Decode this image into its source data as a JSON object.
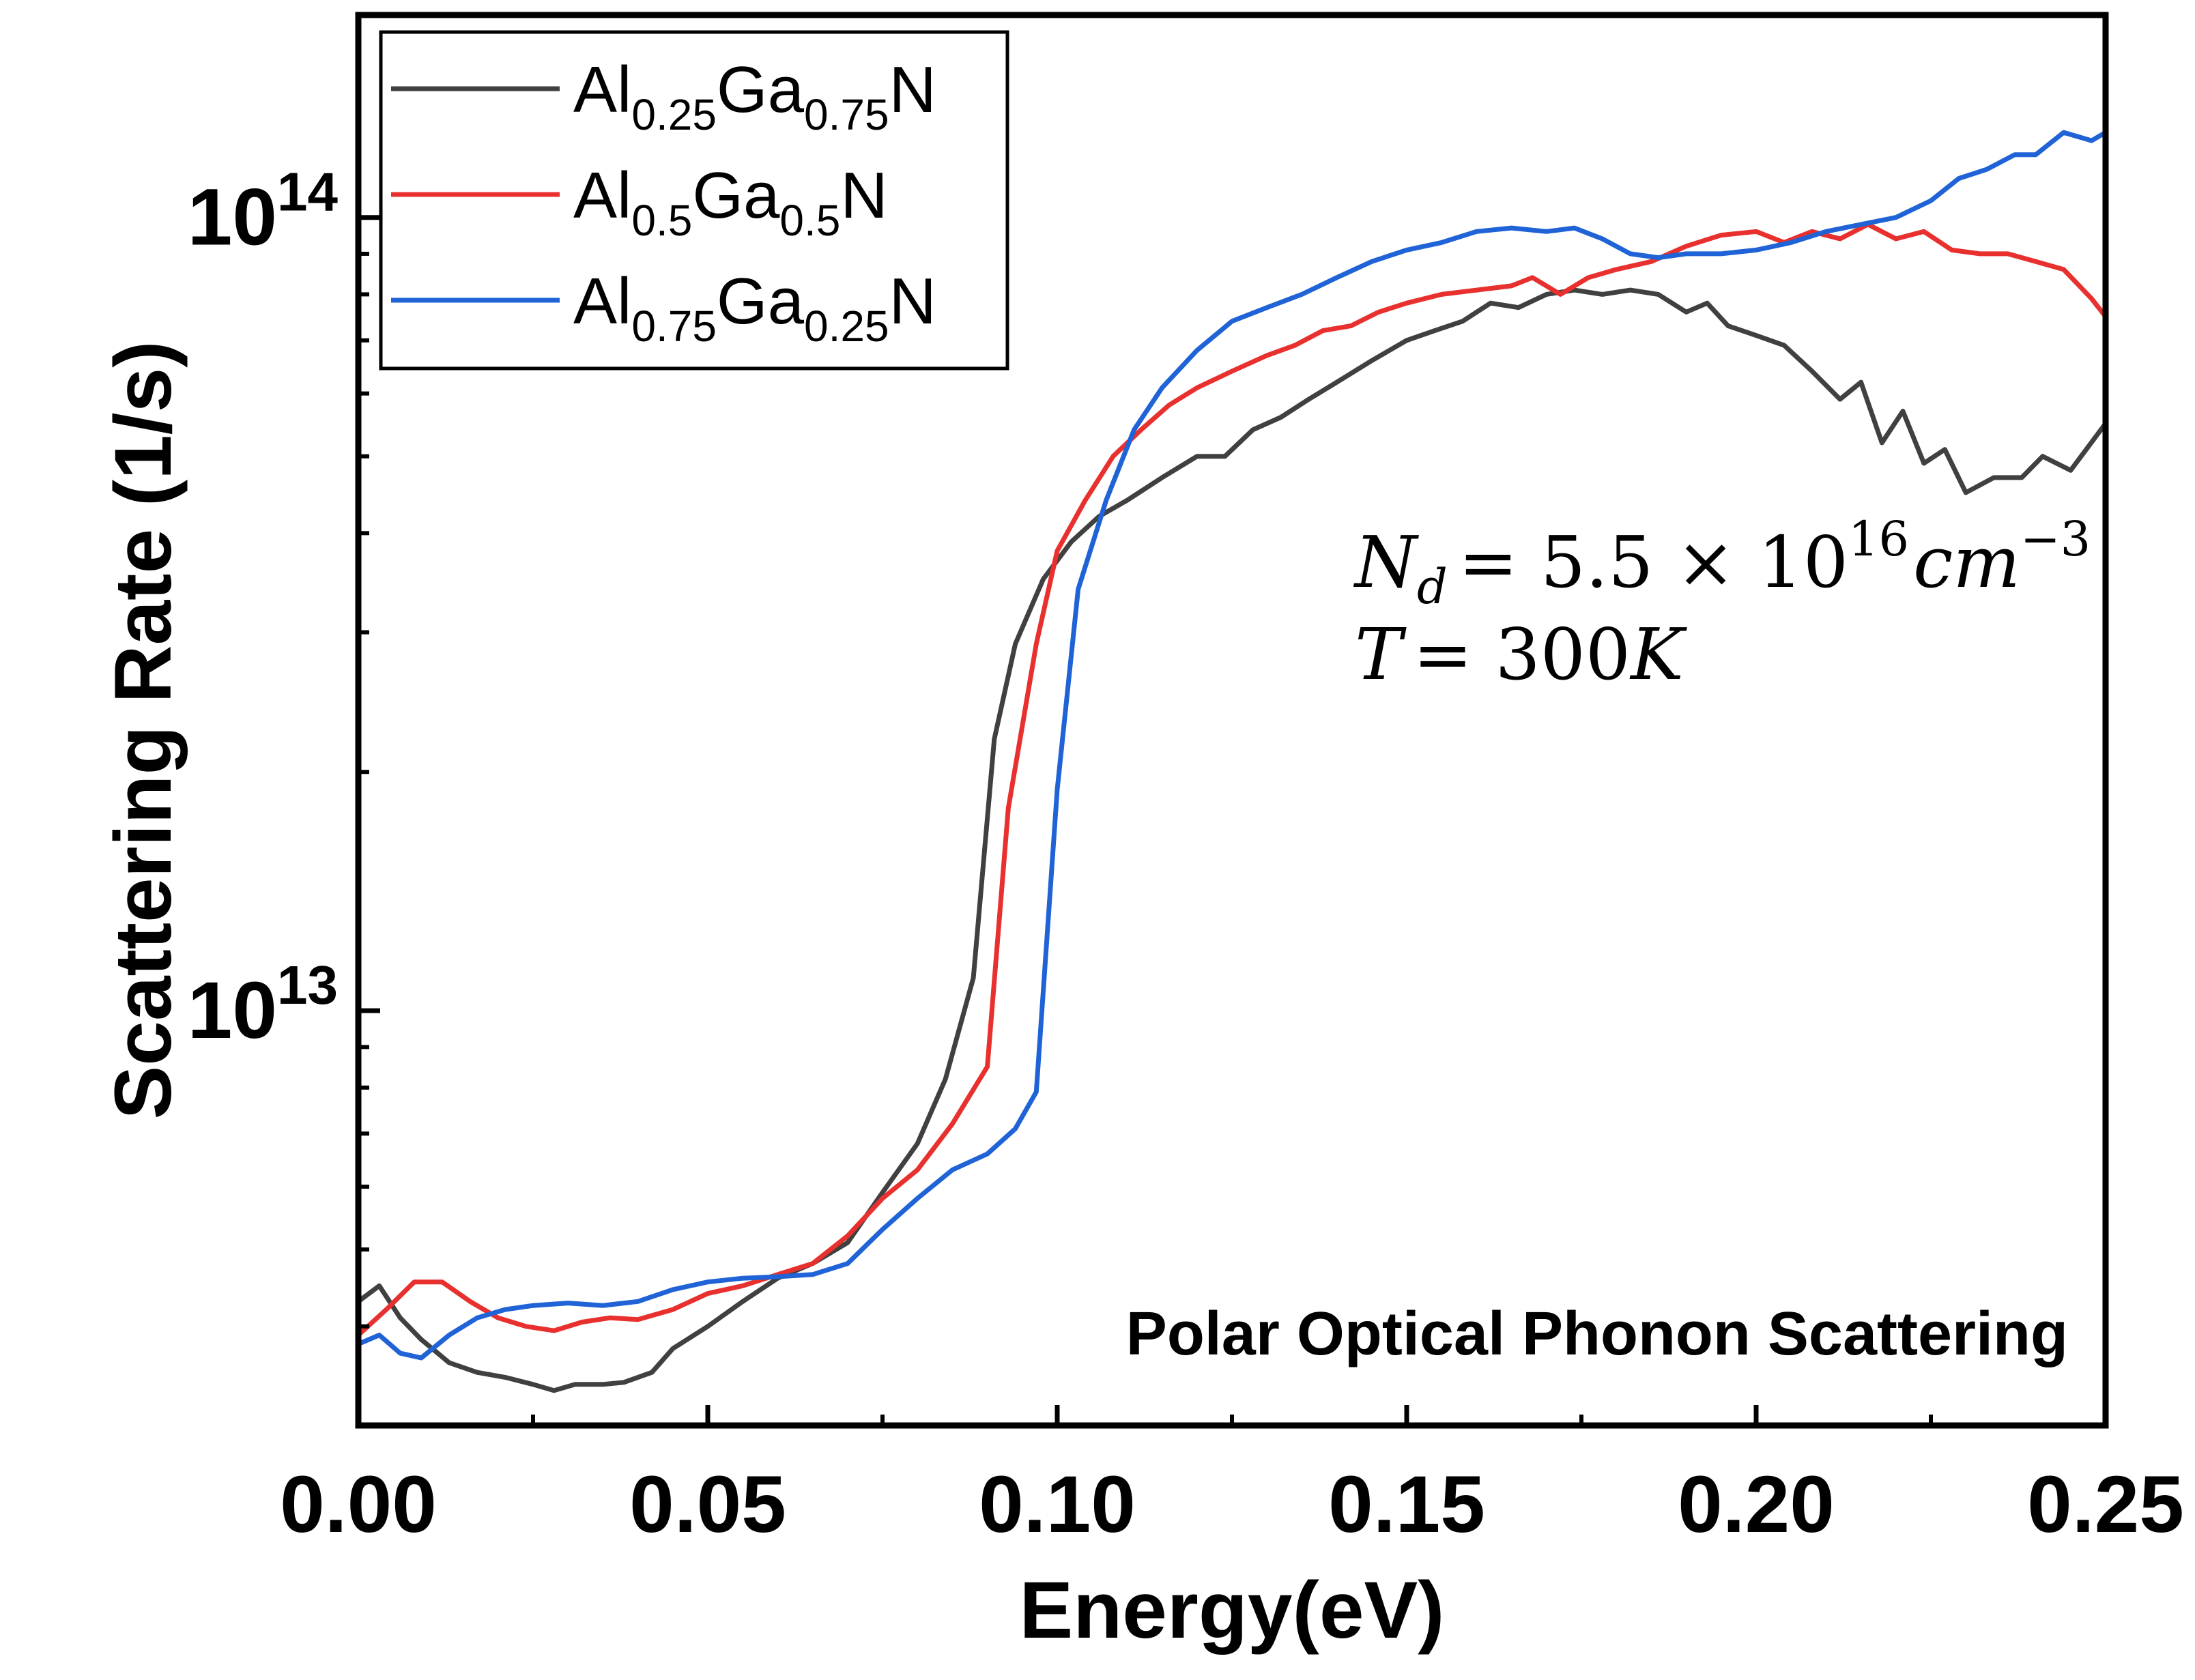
{
  "chart_data": {
    "type": "line",
    "title": "",
    "xlabel": "Energy(eV)",
    "ylabel": "Scattering Rate (1/s)",
    "xlim": [
      0,
      0.25
    ],
    "ylim": [
      3000000000000,
      180000000000000
    ],
    "yscale": "log",
    "x_ticks": [
      0.0,
      0.05,
      0.1,
      0.15,
      0.2,
      0.25
    ],
    "x_tick_labels": [
      "0.00",
      "0.05",
      "0.10",
      "0.15",
      "0.20",
      "0.25"
    ],
    "y_ticks": [
      {
        "value": 10000000000000,
        "base": "10",
        "exp": "13"
      },
      {
        "value": 100000000000000,
        "base": "10",
        "exp": "14"
      }
    ],
    "corner_label": "Polar Optical Phonon Scattering",
    "annotation": {
      "line1": {
        "var": "N",
        "sub": "d",
        "eq": "= 5.5 × 10",
        "exp": "16",
        "unit": "cm",
        "unit_exp": "−3"
      },
      "line2": {
        "var": "T",
        "eq": "= 300",
        "unit": "K"
      }
    },
    "series": [
      {
        "name": "Al0.25Ga0.75N",
        "legend": {
          "p1": "Al",
          "s1": "0.25",
          "p2": "Ga",
          "s2": "0.75",
          "p3": "N"
        },
        "color": "#404040",
        "points": [
          [
            0,
            4300000000000.0
          ],
          [
            0.003,
            4500000000000.0
          ],
          [
            0.006,
            4100000000000.0
          ],
          [
            0.009,
            3850000000000.0
          ],
          [
            0.013,
            3600000000000.0
          ],
          [
            0.017,
            3500000000000.0
          ],
          [
            0.021,
            3450000000000.0
          ],
          [
            0.025,
            3380000000000.0
          ],
          [
            0.028,
            3320000000000.0
          ],
          [
            0.031,
            3380000000000.0
          ],
          [
            0.035,
            3380000000000.0
          ],
          [
            0.038,
            3400000000000.0
          ],
          [
            0.042,
            3500000000000.0
          ],
          [
            0.045,
            3750000000000.0
          ],
          [
            0.05,
            4000000000000.0
          ],
          [
            0.055,
            4300000000000.0
          ],
          [
            0.06,
            4600000000000.0
          ],
          [
            0.065,
            4800000000000.0
          ],
          [
            0.07,
            5100000000000.0
          ],
          [
            0.075,
            5900000000000.0
          ],
          [
            0.08,
            6800000000000.0
          ],
          [
            0.084,
            8200000000000.0
          ],
          [
            0.088,
            11000000000000.0
          ],
          [
            0.091,
            22000000000000.0
          ],
          [
            0.094,
            29000000000000.0
          ],
          [
            0.098,
            35000000000000.0
          ],
          [
            0.102,
            39000000000000.0
          ],
          [
            0.106,
            42000000000000.0
          ],
          [
            0.11,
            44000000000000.0
          ],
          [
            0.115,
            47000000000000.0
          ],
          [
            0.12,
            50000000000000.0
          ],
          [
            0.124,
            50000000000000.0
          ],
          [
            0.128,
            54000000000000.0
          ],
          [
            0.132,
            56000000000000.0
          ],
          [
            0.136,
            59000000000000.0
          ],
          [
            0.14,
            62000000000000.0
          ],
          [
            0.145,
            66000000000000.0
          ],
          [
            0.15,
            70000000000000.0
          ],
          [
            0.154,
            72000000000000.0
          ],
          [
            0.158,
            74000000000000.0
          ],
          [
            0.162,
            78000000000000.0
          ],
          [
            0.166,
            77000000000000.0
          ],
          [
            0.17,
            80000000000000.0
          ],
          [
            0.174,
            81000000000000.0
          ],
          [
            0.178,
            80000000000000.0
          ],
          [
            0.182,
            81000000000000.0
          ],
          [
            0.186,
            80000000000000.0
          ],
          [
            0.19,
            76000000000000.0
          ],
          [
            0.193,
            78000000000000.0
          ],
          [
            0.196,
            73000000000000.0
          ],
          [
            0.2,
            71000000000000.0
          ],
          [
            0.204,
            69000000000000.0
          ],
          [
            0.208,
            64000000000000.0
          ],
          [
            0.212,
            59000000000000.0
          ],
          [
            0.215,
            62000000000000.0
          ],
          [
            0.218,
            52000000000000.0
          ],
          [
            0.221,
            57000000000000.0
          ],
          [
            0.224,
            49000000000000.0
          ],
          [
            0.227,
            51000000000000.0
          ],
          [
            0.23,
            45000000000000.0
          ],
          [
            0.234,
            47000000000000.0
          ],
          [
            0.238,
            47000000000000.0
          ],
          [
            0.241,
            50000000000000.0
          ],
          [
            0.245,
            48000000000000.0
          ],
          [
            0.25,
            55000000000000.0
          ]
        ]
      },
      {
        "name": "Al0.5Ga0.5N",
        "legend": {
          "p1": "Al",
          "s1": "0.5",
          "p2": "Ga",
          "s2": "0.5",
          "p3": "N"
        },
        "color": "#e8312f",
        "points": [
          [
            0,
            3900000000000.0
          ],
          [
            0.004,
            4200000000000.0
          ],
          [
            0.008,
            4550000000000.0
          ],
          [
            0.012,
            4550000000000.0
          ],
          [
            0.016,
            4300000000000.0
          ],
          [
            0.02,
            4100000000000.0
          ],
          [
            0.024,
            4000000000000.0
          ],
          [
            0.028,
            3950000000000.0
          ],
          [
            0.032,
            4050000000000.0
          ],
          [
            0.036,
            4100000000000.0
          ],
          [
            0.04,
            4080000000000.0
          ],
          [
            0.045,
            4200000000000.0
          ],
          [
            0.05,
            4400000000000.0
          ],
          [
            0.055,
            4500000000000.0
          ],
          [
            0.06,
            4650000000000.0
          ],
          [
            0.065,
            4800000000000.0
          ],
          [
            0.07,
            5200000000000.0
          ],
          [
            0.075,
            5800000000000.0
          ],
          [
            0.08,
            6300000000000.0
          ],
          [
            0.085,
            7200000000000.0
          ],
          [
            0.09,
            8500000000000.0
          ],
          [
            0.093,
            18000000000000.0
          ],
          [
            0.097,
            29000000000000.0
          ],
          [
            0.1,
            38000000000000.0
          ],
          [
            0.104,
            44000000000000.0
          ],
          [
            0.108,
            50000000000000.0
          ],
          [
            0.112,
            54000000000000.0
          ],
          [
            0.116,
            58000000000000.0
          ],
          [
            0.12,
            61000000000000.0
          ],
          [
            0.125,
            64000000000000.0
          ],
          [
            0.13,
            67000000000000.0
          ],
          [
            0.134,
            69000000000000.0
          ],
          [
            0.138,
            72000000000000.0
          ],
          [
            0.142,
            73000000000000.0
          ],
          [
            0.146,
            76000000000000.0
          ],
          [
            0.15,
            78000000000000.0
          ],
          [
            0.155,
            80000000000000.0
          ],
          [
            0.16,
            81000000000000.0
          ],
          [
            0.165,
            82000000000000.0
          ],
          [
            0.168,
            84000000000000.0
          ],
          [
            0.172,
            80000000000000.0
          ],
          [
            0.176,
            84000000000000.0
          ],
          [
            0.18,
            86000000000000.0
          ],
          [
            0.185,
            88000000000000.0
          ],
          [
            0.19,
            92000000000000.0
          ],
          [
            0.195,
            95000000000000.0
          ],
          [
            0.2,
            96000000000000.0
          ],
          [
            0.204,
            93000000000000.0
          ],
          [
            0.208,
            96000000000000.0
          ],
          [
            0.212,
            94000000000000.0
          ],
          [
            0.216,
            98000000000000.0
          ],
          [
            0.22,
            94000000000000.0
          ],
          [
            0.224,
            96000000000000.0
          ],
          [
            0.228,
            91000000000000.0
          ],
          [
            0.232,
            90000000000000.0
          ],
          [
            0.236,
            90000000000000.0
          ],
          [
            0.24,
            88000000000000.0
          ],
          [
            0.244,
            86000000000000.0
          ],
          [
            0.248,
            79000000000000.0
          ],
          [
            0.25,
            75000000000000.0
          ]
        ]
      },
      {
        "name": "Al0.75Ga0.25N",
        "legend": {
          "p1": "Al",
          "s1": "0.75",
          "p2": "Ga",
          "s2": "0.25",
          "p3": "N"
        },
        "color": "#1f63d6",
        "points": [
          [
            0,
            3800000000000.0
          ],
          [
            0.003,
            3900000000000.0
          ],
          [
            0.006,
            3700000000000.0
          ],
          [
            0.009,
            3650000000000.0
          ],
          [
            0.013,
            3900000000000.0
          ],
          [
            0.017,
            4100000000000.0
          ],
          [
            0.021,
            4200000000000.0
          ],
          [
            0.025,
            4250000000000.0
          ],
          [
            0.03,
            4280000000000.0
          ],
          [
            0.035,
            4250000000000.0
          ],
          [
            0.04,
            4300000000000.0
          ],
          [
            0.045,
            4450000000000.0
          ],
          [
            0.05,
            4550000000000.0
          ],
          [
            0.055,
            4600000000000.0
          ],
          [
            0.06,
            4620000000000.0
          ],
          [
            0.065,
            4650000000000.0
          ],
          [
            0.07,
            4800000000000.0
          ],
          [
            0.075,
            5300000000000.0
          ],
          [
            0.08,
            5800000000000.0
          ],
          [
            0.085,
            6300000000000.0
          ],
          [
            0.09,
            6600000000000.0
          ],
          [
            0.094,
            7100000000000.0
          ],
          [
            0.097,
            7900000000000.0
          ],
          [
            0.1,
            19000000000000.0
          ],
          [
            0.103,
            34000000000000.0
          ],
          [
            0.107,
            44000000000000.0
          ],
          [
            0.111,
            54000000000000.0
          ],
          [
            0.115,
            61000000000000.0
          ],
          [
            0.12,
            68000000000000.0
          ],
          [
            0.125,
            74000000000000.0
          ],
          [
            0.13,
            77000000000000.0
          ],
          [
            0.135,
            80000000000000.0
          ],
          [
            0.14,
            84000000000000.0
          ],
          [
            0.145,
            88000000000000.0
          ],
          [
            0.15,
            91000000000000.0
          ],
          [
            0.155,
            93000000000000.0
          ],
          [
            0.16,
            96000000000000.0
          ],
          [
            0.165,
            97000000000000.0
          ],
          [
            0.17,
            96000000000000.0
          ],
          [
            0.174,
            97000000000000.0
          ],
          [
            0.178,
            94000000000000.0
          ],
          [
            0.182,
            90000000000000.0
          ],
          [
            0.186,
            89000000000000.0
          ],
          [
            0.19,
            90000000000000.0
          ],
          [
            0.195,
            90000000000000.0
          ],
          [
            0.2,
            91000000000000.0
          ],
          [
            0.205,
            93000000000000.0
          ],
          [
            0.21,
            96000000000000.0
          ],
          [
            0.215,
            98000000000000.0
          ],
          [
            0.22,
            100000000000000.0
          ],
          [
            0.225,
            105000000000000.0
          ],
          [
            0.229,
            112000000000000.0
          ],
          [
            0.233,
            115000000000000.0
          ],
          [
            0.237,
            120000000000000.0
          ],
          [
            0.24,
            120000000000000.0
          ],
          [
            0.244,
            128000000000000.0
          ],
          [
            0.248,
            125000000000000.0
          ],
          [
            0.25,
            128000000000000.0
          ]
        ]
      }
    ]
  }
}
